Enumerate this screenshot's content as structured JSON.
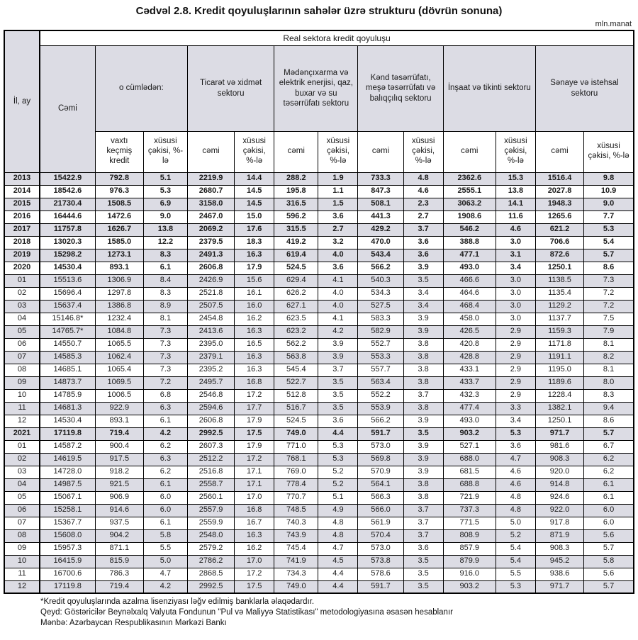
{
  "title": "Cədvəl 2.8. Kredit qoyuluşlarının sahələr üzrə strukturu (dövrün sonuna)",
  "unit": "mln.manat",
  "table": {
    "banner": "Real sektora kredit qoyuluşu",
    "header": {
      "row_col": "İl, ay",
      "total": "Cəmi",
      "including": "o cümlədən:",
      "sub_overdue": "vaxtı keçmiş kredit",
      "sub_share": "xüsusi çəkisi, %-lə",
      "sub_total": "cəmi",
      "groups": [
        "Ticarət və xidmət sektoru",
        "Mədənçıxarma və elektrik enerjisi, qaz, buxar və su təsərrüfatı sektoru",
        "Kənd təsərrüfatı, meşə təsərrüfatı və balıqçılıq sektoru",
        "İnşaat və tikinti sektoru",
        "Sənaye və istehsal sektoru"
      ]
    },
    "rows": [
      {
        "bold": true,
        "cells": [
          "2013",
          "15422.9",
          "792.8",
          "5.1",
          "2219.9",
          "14.4",
          "288.2",
          "1.9",
          "733.3",
          "4.8",
          "2362.6",
          "15.3",
          "1516.4",
          "9.8"
        ]
      },
      {
        "bold": true,
        "cells": [
          "2014",
          "18542.6",
          "976.3",
          "5.3",
          "2680.7",
          "14.5",
          "195.8",
          "1.1",
          "847.3",
          "4.6",
          "2555.1",
          "13.8",
          "2027.8",
          "10.9"
        ]
      },
      {
        "bold": true,
        "cells": [
          "2015",
          "21730.4",
          "1508.5",
          "6.9",
          "3158.0",
          "14.5",
          "316.5",
          "1.5",
          "508.1",
          "2.3",
          "3063.2",
          "14.1",
          "1948.3",
          "9.0"
        ]
      },
      {
        "bold": true,
        "cells": [
          "2016",
          "16444.6",
          "1472.6",
          "9.0",
          "2467.0",
          "15.0",
          "596.2",
          "3.6",
          "441.3",
          "2.7",
          "1908.6",
          "11.6",
          "1265.6",
          "7.7"
        ]
      },
      {
        "bold": true,
        "cells": [
          "2017",
          "11757.8",
          "1626.7",
          "13.8",
          "2069.2",
          "17.6",
          "315.5",
          "2.7",
          "429.2",
          "3.7",
          "546.2",
          "4.6",
          "621.2",
          "5.3"
        ]
      },
      {
        "bold": true,
        "cells": [
          "2018",
          "13020.3",
          "1585.0",
          "12.2",
          "2379.5",
          "18.3",
          "419.2",
          "3.2",
          "470.0",
          "3.6",
          "388.8",
          "3.0",
          "706.6",
          "5.4"
        ]
      },
      {
        "bold": true,
        "cells": [
          "2019",
          "15298.2",
          "1273.1",
          "8.3",
          "2491.3",
          "16.3",
          "619.4",
          "4.0",
          "543.4",
          "3.6",
          "477.1",
          "3.1",
          "872.6",
          "5.7"
        ]
      },
      {
        "bold": true,
        "cells": [
          "2020",
          "14530.4",
          "893.1",
          "6.1",
          "2606.8",
          "17.9",
          "524.5",
          "3.6",
          "566.2",
          "3.9",
          "493.0",
          "3.4",
          "1250.1",
          "8.6"
        ]
      },
      {
        "bold": false,
        "cells": [
          "01",
          "15513.6",
          "1306.9",
          "8.4",
          "2426.9",
          "15.6",
          "629.4",
          "4.1",
          "540.3",
          "3.5",
          "466.6",
          "3.0",
          "1138.5",
          "7.3"
        ]
      },
      {
        "bold": false,
        "cells": [
          "02",
          "15696.4",
          "1297.8",
          "8.3",
          "2521.8",
          "16.1",
          "626.2",
          "4.0",
          "534.3",
          "3.4",
          "464.6",
          "3.0",
          "1135.4",
          "7.2"
        ]
      },
      {
        "bold": false,
        "cells": [
          "03",
          "15637.4",
          "1386.8",
          "8.9",
          "2507.5",
          "16.0",
          "627.1",
          "4.0",
          "527.5",
          "3.4",
          "468.4",
          "3.0",
          "1129.2",
          "7.2"
        ]
      },
      {
        "bold": false,
        "cells": [
          "04",
          "15146.8*",
          "1232.4",
          "8.1",
          "2454.8",
          "16.2",
          "623.5",
          "4.1",
          "583.3",
          "3.9",
          "458.0",
          "3.0",
          "1137.7",
          "7.5"
        ]
      },
      {
        "bold": false,
        "cells": [
          "05",
          "14765.7*",
          "1084.8",
          "7.3",
          "2413.6",
          "16.3",
          "623.2",
          "4.2",
          "582.9",
          "3.9",
          "426.5",
          "2.9",
          "1159.3",
          "7.9"
        ]
      },
      {
        "bold": false,
        "cells": [
          "06",
          "14550.7",
          "1065.5",
          "7.3",
          "2395.0",
          "16.5",
          "562.2",
          "3.9",
          "552.7",
          "3.8",
          "420.8",
          "2.9",
          "1171.8",
          "8.1"
        ]
      },
      {
        "bold": false,
        "cells": [
          "07",
          "14585.3",
          "1062.4",
          "7.3",
          "2379.1",
          "16.3",
          "563.8",
          "3.9",
          "553.3",
          "3.8",
          "428.8",
          "2.9",
          "1191.1",
          "8.2"
        ]
      },
      {
        "bold": false,
        "cells": [
          "08",
          "14685.1",
          "1065.4",
          "7.3",
          "2395.2",
          "16.3",
          "545.4",
          "3.7",
          "557.7",
          "3.8",
          "433.1",
          "2.9",
          "1195.0",
          "8.1"
        ]
      },
      {
        "bold": false,
        "cells": [
          "09",
          "14873.7",
          "1069.5",
          "7.2",
          "2495.7",
          "16.8",
          "522.7",
          "3.5",
          "563.4",
          "3.8",
          "433.7",
          "2.9",
          "1189.6",
          "8.0"
        ]
      },
      {
        "bold": false,
        "cells": [
          "10",
          "14785.9",
          "1006.5",
          "6.8",
          "2546.8",
          "17.2",
          "512.8",
          "3.5",
          "552.2",
          "3.7",
          "432.3",
          "2.9",
          "1228.4",
          "8.3"
        ]
      },
      {
        "bold": false,
        "cells": [
          "11",
          "14681.3",
          "922.9",
          "6.3",
          "2594.6",
          "17.7",
          "516.7",
          "3.5",
          "553.9",
          "3.8",
          "477.4",
          "3.3",
          "1382.1",
          "9.4"
        ]
      },
      {
        "bold": false,
        "cells": [
          "12",
          "14530.4",
          "893.1",
          "6.1",
          "2606.8",
          "17.9",
          "524.5",
          "3.6",
          "566.2",
          "3.9",
          "493.0",
          "3.4",
          "1250.1",
          "8.6"
        ]
      },
      {
        "bold": true,
        "cells": [
          "2021",
          "17119.8",
          "719.4",
          "4.2",
          "2992.5",
          "17.5",
          "749.0",
          "4.4",
          "591.7",
          "3.5",
          "903.2",
          "5.3",
          "971.7",
          "5.7"
        ]
      },
      {
        "bold": false,
        "cells": [
          "01",
          "14587.2",
          "900.4",
          "6.2",
          "2607.3",
          "17.9",
          "771.0",
          "5.3",
          "573.0",
          "3.9",
          "527.1",
          "3.6",
          "981.6",
          "6.7"
        ]
      },
      {
        "bold": false,
        "cells": [
          "02",
          "14619.5",
          "917.5",
          "6.3",
          "2512.2",
          "17.2",
          "768.1",
          "5.3",
          "569.8",
          "3.9",
          "688.0",
          "4.7",
          "908.3",
          "6.2"
        ]
      },
      {
        "bold": false,
        "cells": [
          "03",
          "14728.0",
          "918.2",
          "6.2",
          "2516.8",
          "17.1",
          "769.0",
          "5.2",
          "570.9",
          "3.9",
          "681.5",
          "4.6",
          "920.0",
          "6.2"
        ]
      },
      {
        "bold": false,
        "cells": [
          "04",
          "14987.5",
          "921.5",
          "6.1",
          "2558.7",
          "17.1",
          "778.4",
          "5.2",
          "564.1",
          "3.8",
          "688.8",
          "4.6",
          "914.8",
          "6.1"
        ]
      },
      {
        "bold": false,
        "cells": [
          "05",
          "15067.1",
          "906.9",
          "6.0",
          "2560.1",
          "17.0",
          "770.7",
          "5.1",
          "566.3",
          "3.8",
          "721.9",
          "4.8",
          "924.6",
          "6.1"
        ]
      },
      {
        "bold": false,
        "cells": [
          "06",
          "15258.1",
          "914.6",
          "6.0",
          "2557.9",
          "16.8",
          "748.5",
          "4.9",
          "566.0",
          "3.7",
          "737.3",
          "4.8",
          "922.0",
          "6.0"
        ]
      },
      {
        "bold": false,
        "cells": [
          "07",
          "15367.7",
          "937.5",
          "6.1",
          "2559.9",
          "16.7",
          "740.3",
          "4.8",
          "561.9",
          "3.7",
          "771.5",
          "5.0",
          "917.8",
          "6.0"
        ]
      },
      {
        "bold": false,
        "cells": [
          "08",
          "15608.0",
          "904.2",
          "5.8",
          "2548.0",
          "16.3",
          "743.9",
          "4.8",
          "570.4",
          "3.7",
          "808.9",
          "5.2",
          "871.9",
          "5.6"
        ]
      },
      {
        "bold": false,
        "cells": [
          "09",
          "15957.3",
          "871.1",
          "5.5",
          "2579.2",
          "16.2",
          "745.4",
          "4.7",
          "573.0",
          "3.6",
          "857.9",
          "5.4",
          "908.3",
          "5.7"
        ]
      },
      {
        "bold": false,
        "cells": [
          "10",
          "16415.9",
          "815.9",
          "5.0",
          "2786.2",
          "17.0",
          "741.9",
          "4.5",
          "573.8",
          "3.5",
          "879.9",
          "5.4",
          "945.2",
          "5.8"
        ]
      },
      {
        "bold": false,
        "cells": [
          "11",
          "16700.6",
          "786.3",
          "4.7",
          "2868.5",
          "17.2",
          "734.3",
          "4.4",
          "578.6",
          "3.5",
          "916.0",
          "5.5",
          "938.6",
          "5.6"
        ]
      },
      {
        "bold": false,
        "cells": [
          "12",
          "17119.8",
          "719.4",
          "4.2",
          "2992.5",
          "17.5",
          "749.0",
          "4.4",
          "591.7",
          "3.5",
          "903.2",
          "5.3",
          "971.7",
          "5.7"
        ]
      }
    ]
  },
  "footnotes": [
    "*Kredit qoyuluşlarında azalma lisenziyası ləğv edilmiş banklarla əlaqədardır.",
    "Qeyd: Göstəricilər Beynəlxalq Valyuta Fondunun \"Pul və Maliyyə Statistikası\" metodologiyasına əsasən hesablanır",
    "Mənbə: Azərbaycan Respublikasının Mərkəzi Bankı"
  ],
  "colors": {
    "row_shade": "#dcdce4",
    "border": "#000000"
  }
}
